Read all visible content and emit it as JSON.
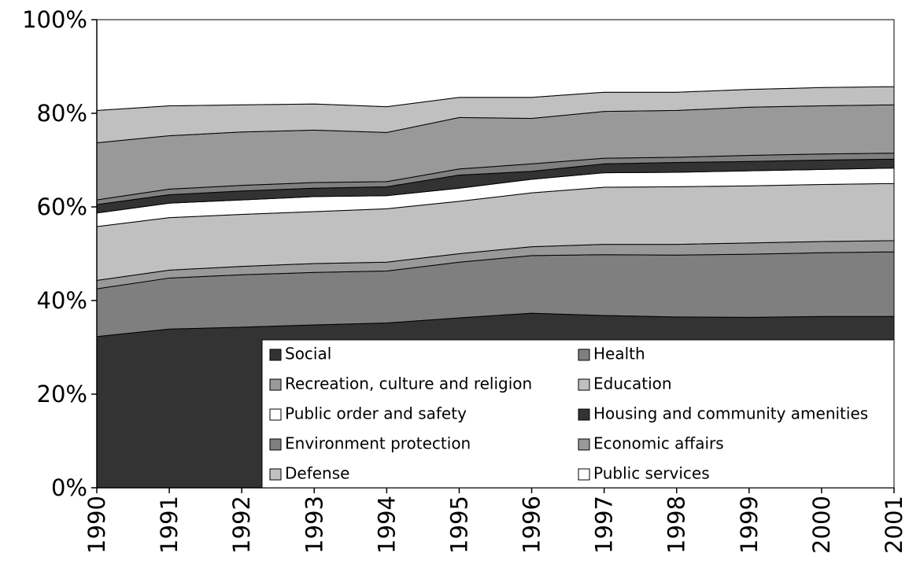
{
  "chart_data": {
    "type": "stacked_area",
    "categories": [
      "1990",
      "1991",
      "1992",
      "1993",
      "1994",
      "1995",
      "1996",
      "1997",
      "1998",
      "1999",
      "2000",
      "2001"
    ],
    "ylim": [
      0,
      100
    ],
    "yticks": [
      {
        "value": 0,
        "label": "0%"
      },
      {
        "value": 20,
        "label": "20%"
      },
      {
        "value": 40,
        "label": "40%"
      },
      {
        "value": 60,
        "label": "60%"
      },
      {
        "value": 80,
        "label": "80%"
      },
      {
        "value": 100,
        "label": "100%"
      }
    ],
    "series": [
      {
        "name": "Social",
        "color": "#333333",
        "values": [
          32.3,
          33.9,
          34.3,
          34.8,
          35.2,
          36.3,
          37.3,
          36.8,
          36.5,
          36.4,
          36.6,
          36.6
        ]
      },
      {
        "name": "Health",
        "color": "#7f7f7f",
        "values": [
          10.2,
          10.9,
          11.2,
          11.2,
          11.1,
          11.9,
          12.3,
          13.0,
          13.2,
          13.5,
          13.6,
          13.8
        ]
      },
      {
        "name": "Recreation, culture and religion",
        "color": "#999999",
        "values": [
          1.8,
          1.7,
          1.8,
          1.9,
          1.9,
          1.8,
          1.9,
          2.2,
          2.3,
          2.4,
          2.4,
          2.4
        ]
      },
      {
        "name": "Education",
        "color": "#c0c0c0",
        "values": [
          11.5,
          11.2,
          11.1,
          11.1,
          11.4,
          11.2,
          11.5,
          12.2,
          12.3,
          12.2,
          12.2,
          12.2
        ]
      },
      {
        "name": "Public order and safety",
        "color": "#ffffff",
        "values": [
          2.9,
          3.1,
          3.1,
          3.2,
          2.8,
          2.8,
          2.9,
          3.1,
          3.1,
          3.2,
          3.2,
          3.3
        ]
      },
      {
        "name": "Housing and community amenities",
        "color": "#333333",
        "values": [
          1.8,
          1.8,
          1.9,
          1.8,
          1.9,
          2.8,
          1.7,
          1.9,
          2.1,
          2.0,
          2.0,
          1.9
        ]
      },
      {
        "name": "Environment protection",
        "color": "#808080",
        "values": [
          1.0,
          1.2,
          1.2,
          1.2,
          1.1,
          1.3,
          1.6,
          1.2,
          1.1,
          1.3,
          1.3,
          1.3
        ]
      },
      {
        "name": "Economic affairs",
        "color": "#999999",
        "values": [
          12.2,
          11.4,
          11.4,
          11.2,
          10.5,
          11.0,
          9.7,
          10.0,
          10.0,
          10.3,
          10.3,
          10.3
        ]
      },
      {
        "name": "Defense",
        "color": "#c0c0c0",
        "values": [
          6.9,
          6.4,
          5.8,
          5.6,
          5.5,
          4.3,
          4.5,
          4.1,
          3.9,
          3.8,
          3.9,
          3.9
        ]
      },
      {
        "name": "Public services",
        "color": "#ffffff",
        "values": [
          19.4,
          18.4,
          18.2,
          18.0,
          18.6,
          16.6,
          16.6,
          15.5,
          15.5,
          14.9,
          14.5,
          14.3
        ]
      }
    ]
  }
}
